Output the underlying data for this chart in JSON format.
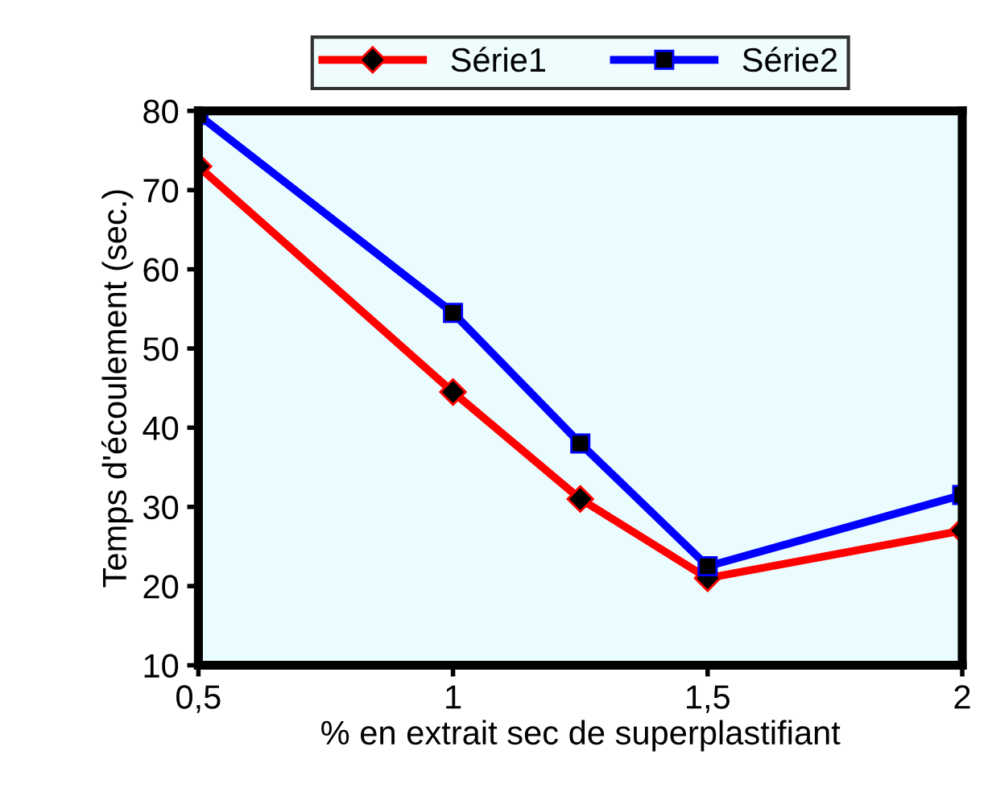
{
  "chart_data": {
    "type": "line",
    "xlabel": "% en extrait sec de superplastifiant",
    "ylabel": "Temps d'écoulement (sec.)",
    "x": [
      0.5,
      1,
      1.25,
      1.5,
      2
    ],
    "series": [
      {
        "name": "Série1",
        "color": "#ff0000",
        "marker": "diamond",
        "values": [
          73,
          44.5,
          31,
          21,
          27
        ]
      },
      {
        "name": "Série2",
        "color": "#0000ff",
        "marker": "square",
        "values": [
          79.5,
          54.5,
          38,
          22.5,
          31.5
        ]
      }
    ],
    "xlim": [
      0.5,
      2
    ],
    "xticks": [
      {
        "value": 0.5,
        "label": "0,5"
      },
      1,
      {
        "value": 1.5,
        "label": "1,5"
      },
      2
    ],
    "ylim": [
      10,
      80
    ],
    "yticks": [
      10,
      20,
      30,
      40,
      50,
      60,
      70,
      80
    ],
    "grid": false,
    "legend": "top",
    "line_style": "solid"
  }
}
